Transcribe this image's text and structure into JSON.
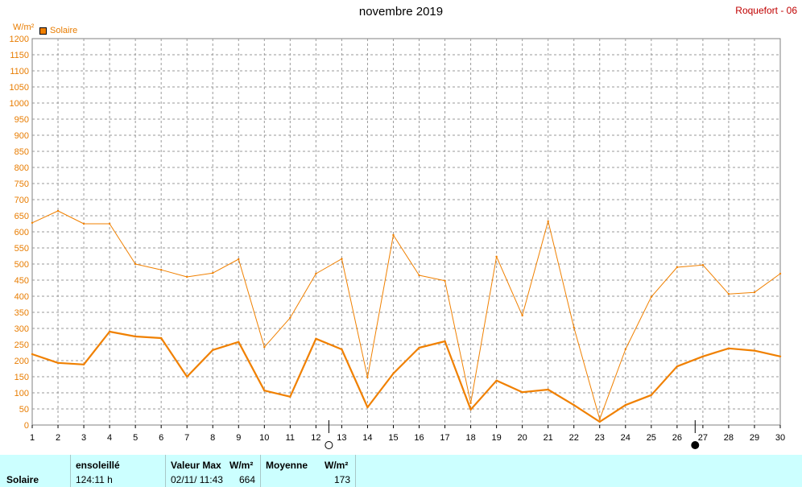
{
  "header": {
    "title": "novembre 2019",
    "station": "Roquefort - 06",
    "unit": "W/m²",
    "legend_label": "Solaire"
  },
  "colors": {
    "series": "#f08000",
    "axis_text": "#e87c00",
    "grid": "#9a9a9a",
    "station": "#c00000",
    "panel_bg": "#ccffff"
  },
  "chart_data": {
    "type": "line",
    "title": "novembre 2019",
    "ylabel": "W/m²",
    "xlabel": "",
    "xlim": [
      1,
      30
    ],
    "ylim": [
      0,
      1200
    ],
    "grid": true,
    "legend_placement": "top-left",
    "x": [
      1,
      2,
      3,
      4,
      5,
      6,
      7,
      8,
      9,
      10,
      11,
      12,
      13,
      14,
      15,
      16,
      17,
      18,
      19,
      20,
      21,
      22,
      23,
      24,
      25,
      26,
      27,
      28,
      29,
      30
    ],
    "y_ticks": [
      0,
      50,
      100,
      150,
      200,
      250,
      300,
      350,
      400,
      450,
      500,
      550,
      600,
      650,
      700,
      750,
      800,
      850,
      900,
      950,
      1000,
      1050,
      1100,
      1150,
      1200
    ],
    "series": [
      {
        "name": "Solaire",
        "role": "max",
        "values": [
          628,
          665,
          625,
          625,
          500,
          482,
          460,
          472,
          515,
          242,
          333,
          470,
          516,
          148,
          590,
          465,
          448,
          68,
          523,
          340,
          633,
          303,
          18,
          235,
          398,
          490,
          497,
          407,
          412,
          470
        ]
      },
      {
        "name": "Solaire",
        "role": "mean",
        "values": [
          220,
          193,
          188,
          290,
          275,
          270,
          150,
          233,
          258,
          107,
          88,
          268,
          235,
          55,
          160,
          240,
          260,
          48,
          138,
          102,
          110,
          62,
          10,
          62,
          93,
          182,
          213,
          238,
          231,
          213
        ]
      }
    ],
    "moon_phases": [
      {
        "x": 12.5,
        "phase": "full"
      },
      {
        "x": 26.7,
        "phase": "new"
      }
    ]
  },
  "summary": {
    "label": "Solaire",
    "sunshine_header": "ensoleillé",
    "sunshine_value": "124:11 h",
    "max_header": "Valeur Max",
    "max_unit": "W/m²",
    "max_datetime": "02/11/  11:43",
    "max_value": "664",
    "mean_header": "Moyenne",
    "mean_unit": "W/m²",
    "mean_value": "173"
  }
}
